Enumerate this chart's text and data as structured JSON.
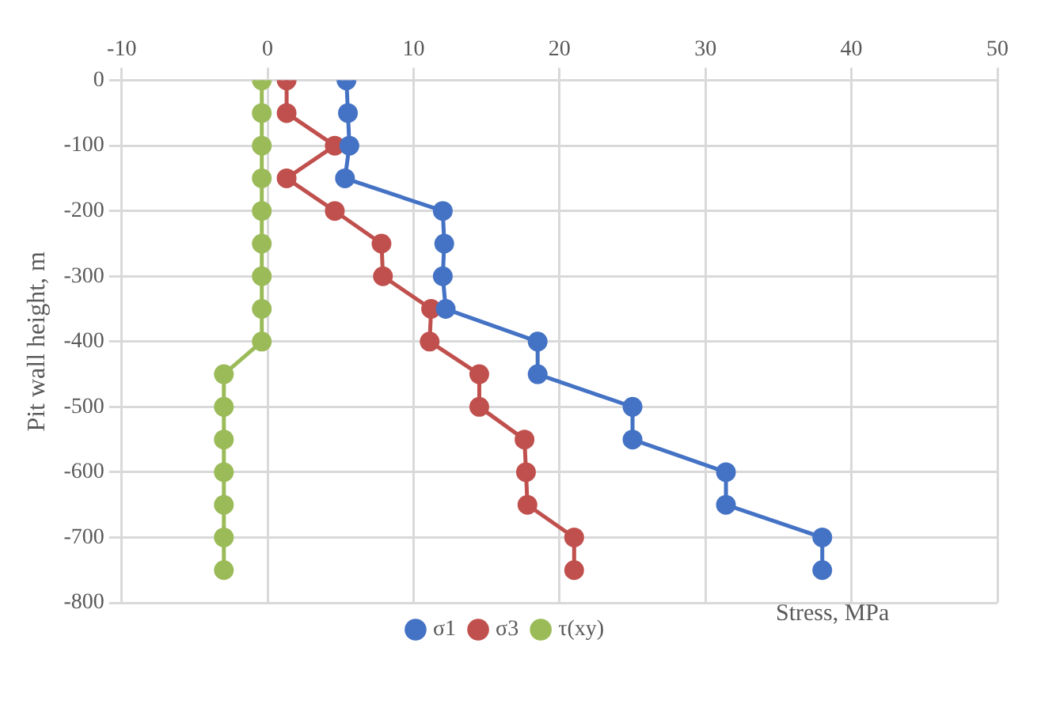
{
  "chart_data": {
    "type": "line",
    "ylabel": "Pit wall height, m",
    "xlabel": "Stress, MPa",
    "xlim": [
      -10,
      50
    ],
    "xticks": [
      -10,
      0,
      10,
      20,
      30,
      40,
      50
    ],
    "ylim": [
      -800,
      0
    ],
    "yticks": [
      -800,
      -700,
      -600,
      -500,
      -400,
      -300,
      -200,
      -100,
      0
    ],
    "grid": true,
    "legend": "bottom",
    "marker": "circle",
    "series": [
      {
        "name": "σ1",
        "color": "#4472c4",
        "x": [
          5.4,
          5.5,
          5.6,
          5.3,
          12,
          12.1,
          12,
          12.2,
          18.5,
          18.5,
          25,
          25,
          31.4,
          31.4,
          38,
          38
        ],
        "values": [
          0,
          -50,
          -100,
          -150,
          -200,
          -250,
          -300,
          -350,
          -400,
          -450,
          -500,
          -550,
          -600,
          -650,
          -700,
          -750
        ]
      },
      {
        "name": "σ3",
        "color": "#c0504d",
        "x": [
          1.3,
          1.3,
          4.6,
          1.3,
          4.6,
          7.8,
          7.9,
          11.2,
          11.1,
          14.5,
          14.5,
          17.6,
          17.7,
          17.8,
          21,
          21
        ],
        "values": [
          0,
          -50,
          -100,
          -150,
          -200,
          -250,
          -300,
          -350,
          -400,
          -450,
          -500,
          -550,
          -600,
          -650,
          -700,
          -750
        ]
      },
      {
        "name": "τ(xy)",
        "color": "#9bbb59",
        "x": [
          -0.4,
          -0.4,
          -0.4,
          -0.4,
          -0.4,
          -0.4,
          -0.4,
          -0.4,
          -0.4,
          -3,
          -3,
          -3,
          -3,
          -3,
          -3,
          -3
        ],
        "values": [
          0,
          -50,
          -100,
          -150,
          -200,
          -250,
          -300,
          -350,
          -400,
          -450,
          -500,
          -550,
          -600,
          -650,
          -700,
          -750
        ]
      }
    ]
  }
}
